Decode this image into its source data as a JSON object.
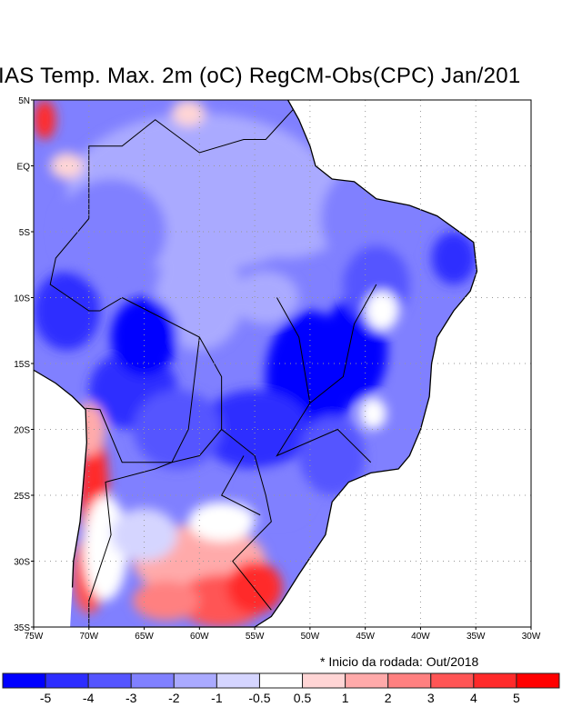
{
  "title": "IAS Temp. Max. 2m (oC) RegCM-Obs(CPC) Jan/201",
  "note": "* Inicio da rodada: Out/2018",
  "axes": {
    "lat_labels": [
      "5N",
      "EQ",
      "5S",
      "10S",
      "15S",
      "20S",
      "25S",
      "30S",
      "35S"
    ],
    "lat_values": [
      5,
      0,
      -5,
      -10,
      -15,
      -20,
      -25,
      -30,
      -35
    ],
    "lon_labels": [
      "75W",
      "70W",
      "65W",
      "60W",
      "55W",
      "50W",
      "45W",
      "40W",
      "35W",
      "30W"
    ],
    "lon_values": [
      -75,
      -70,
      -65,
      -60,
      -55,
      -50,
      -45,
      -40,
      -35,
      -30
    ]
  },
  "colorbar": {
    "labels": [
      "-5",
      "-4",
      "-3",
      "-2",
      "-1",
      "-0.5",
      "0.5",
      "1",
      "2",
      "3",
      "4",
      "5"
    ],
    "colors": [
      "#0000ff",
      "#2d2dff",
      "#5555ff",
      "#8080ff",
      "#aaaaff",
      "#d5d5ff",
      "#ffffff",
      "#ffd5d5",
      "#ffaaaa",
      "#ff8080",
      "#ff5555",
      "#ff2a2a",
      "#ff0000"
    ]
  }
}
